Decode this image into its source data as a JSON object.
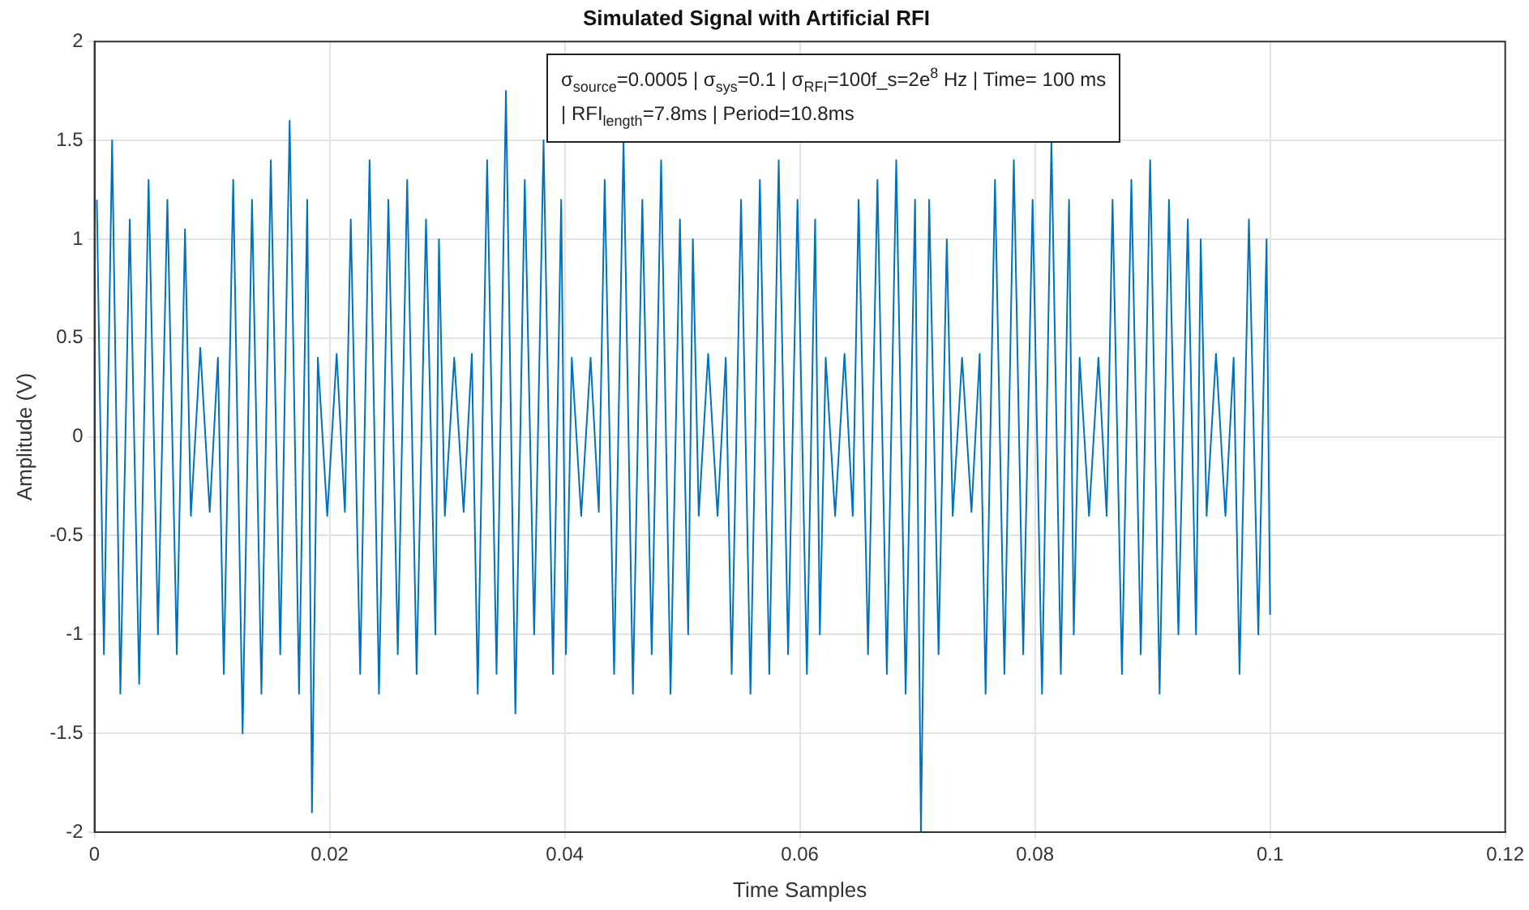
{
  "chart_data": {
    "type": "line",
    "title": "Simulated Signal with Artificial RFI",
    "xlabel": "Time Samples",
    "ylabel": "Amplitude (V)",
    "annotations": [
      "σ$_{source}$=0.0005 | σ$_{sys}$=0.1 | σ$_{RFI}$=100f_s=2e$^{8}$ Hz | Time= 100 ms",
      "| RFI$_{length}$=7.8ms |  Period=10.8ms"
    ],
    "x": [
      0.0002,
      0.0008,
      0.0015,
      0.0022,
      0.003,
      0.0038,
      0.0046,
      0.0054,
      0.0062,
      0.007,
      0.0077,
      0.0082,
      0.009,
      0.0098,
      0.0105,
      0.011,
      0.0118,
      0.0126,
      0.0134,
      0.0142,
      0.015,
      0.0158,
      0.0166,
      0.0174,
      0.0181,
      0.0185,
      0.019,
      0.0198,
      0.0206,
      0.0213,
      0.0218,
      0.0226,
      0.0234,
      0.0242,
      0.025,
      0.0258,
      0.0266,
      0.0274,
      0.0282,
      0.029,
      0.0293,
      0.0298,
      0.0306,
      0.0314,
      0.0321,
      0.0326,
      0.0334,
      0.0342,
      0.035,
      0.0358,
      0.0366,
      0.0374,
      0.0382,
      0.039,
      0.0397,
      0.0401,
      0.0406,
      0.0414,
      0.0422,
      0.0429,
      0.0434,
      0.0442,
      0.045,
      0.0458,
      0.0466,
      0.0474,
      0.0482,
      0.049,
      0.0498,
      0.0505,
      0.0509,
      0.0514,
      0.0522,
      0.053,
      0.0537,
      0.0542,
      0.055,
      0.0558,
      0.0566,
      0.0574,
      0.0582,
      0.059,
      0.0598,
      0.0606,
      0.0613,
      0.0617,
      0.0622,
      0.063,
      0.0638,
      0.0645,
      0.065,
      0.0658,
      0.0666,
      0.0674,
      0.0682,
      0.069,
      0.0698,
      0.0703,
      0.071,
      0.0718,
      0.0725,
      0.073,
      0.0738,
      0.0746,
      0.0753,
      0.0758,
      0.0766,
      0.0774,
      0.0782,
      0.079,
      0.0798,
      0.0806,
      0.0814,
      0.0822,
      0.0829,
      0.0833,
      0.0838,
      0.0846,
      0.0854,
      0.0861,
      0.0866,
      0.0874,
      0.0882,
      0.089,
      0.0898,
      0.0906,
      0.0914,
      0.0922,
      0.093,
      0.0937,
      0.0941,
      0.0946,
      0.0954,
      0.0962,
      0.0969,
      0.0974,
      0.0982,
      0.099,
      0.0997,
      0.1
    ],
    "series": [
      {
        "color": "#0072bd",
        "values": [
          1.2,
          -1.1,
          1.5,
          -1.3,
          1.1,
          -1.25,
          1.3,
          -1.0,
          1.2,
          -1.1,
          1.05,
          -0.4,
          0.45,
          -0.38,
          0.4,
          -1.2,
          1.3,
          -1.5,
          1.2,
          -1.3,
          1.4,
          -1.1,
          1.6,
          -1.3,
          1.2,
          -1.9,
          0.4,
          -0.4,
          0.42,
          -0.38,
          1.1,
          -1.2,
          1.4,
          -1.3,
          1.2,
          -1.1,
          1.3,
          -1.2,
          1.1,
          -1.0,
          1.0,
          -0.4,
          0.4,
          -0.38,
          0.42,
          -1.3,
          1.4,
          -1.2,
          1.75,
          -1.4,
          1.3,
          -1.0,
          1.5,
          -1.2,
          1.2,
          -1.1,
          0.4,
          -0.4,
          0.4,
          -0.38,
          1.3,
          -1.2,
          1.5,
          -1.3,
          1.2,
          -1.1,
          1.4,
          -1.3,
          1.1,
          -1.0,
          1.0,
          -0.4,
          0.42,
          -0.4,
          0.4,
          -1.2,
          1.2,
          -1.3,
          1.3,
          -1.2,
          1.4,
          -1.1,
          1.2,
          -1.2,
          1.1,
          -1.0,
          0.4,
          -0.4,
          0.42,
          -0.4,
          1.2,
          -1.1,
          1.3,
          -1.2,
          1.4,
          -1.3,
          1.2,
          -2.0,
          1.2,
          -1.1,
          1.0,
          -0.4,
          0.4,
          -0.38,
          0.42,
          -1.3,
          1.3,
          -1.2,
          1.4,
          -1.1,
          1.2,
          -1.3,
          1.5,
          -1.2,
          1.2,
          -1.0,
          0.4,
          -0.4,
          0.4,
          -0.4,
          1.2,
          -1.2,
          1.3,
          -1.1,
          1.4,
          -1.3,
          1.2,
          -1.0,
          1.1,
          -1.0,
          1.0,
          -0.4,
          0.42,
          -0.4,
          0.4,
          -1.2,
          1.1,
          -1.0,
          1.0,
          -0.9
        ]
      }
    ],
    "xlim": [
      0,
      0.12
    ],
    "xticks": [
      0,
      0.02,
      0.04,
      0.06,
      0.08,
      0.1,
      0.12
    ],
    "ylim": [
      -2,
      2
    ],
    "yticks": [
      -2,
      -1.5,
      -1,
      -0.5,
      0,
      0.5,
      1,
      1.5,
      2
    ],
    "grid": true,
    "legend": false,
    "marker": "none",
    "line_style": "solid"
  }
}
